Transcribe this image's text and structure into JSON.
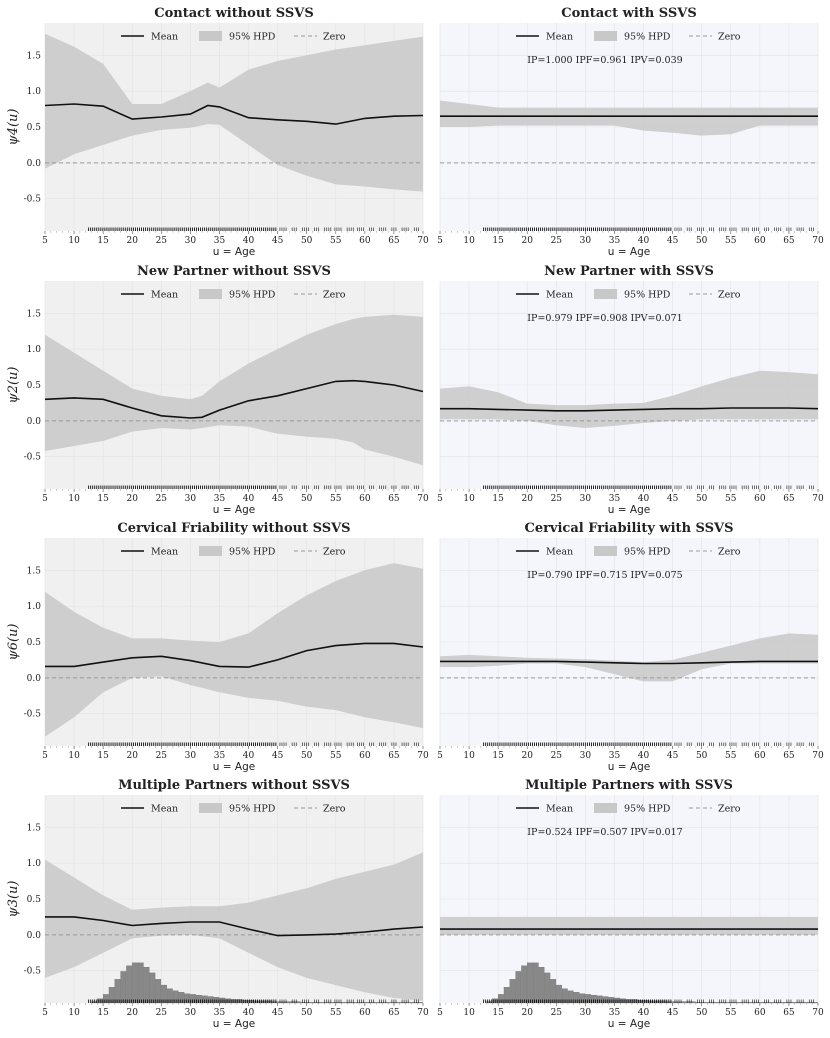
{
  "legend": {
    "mean": "Mean",
    "hpd": "95% HPD",
    "zero": "Zero"
  },
  "colors": {
    "left_bg": "#f0f0f0",
    "right_bg": "#f5f6fc",
    "band": "#c8c8c8",
    "mean": "#111111",
    "zero": "#999999",
    "hist": "#888888"
  },
  "chart_data": [
    {
      "type": "line",
      "title": "Contact without SSVS",
      "ylabel": "ψ4(u)",
      "xlabel": "u = Age",
      "xlim": [
        5,
        70
      ],
      "ylim": [
        -0.95,
        1.95
      ],
      "x": [
        5,
        10,
        15,
        20,
        25,
        30,
        33,
        35,
        40,
        45,
        50,
        55,
        60,
        65,
        70
      ],
      "mean": [
        0.8,
        0.82,
        0.79,
        0.61,
        0.64,
        0.68,
        0.8,
        0.78,
        0.63,
        0.6,
        0.58,
        0.54,
        0.62,
        0.65,
        0.66
      ],
      "hpd_upper": [
        1.8,
        1.62,
        1.38,
        0.82,
        0.82,
        1.0,
        1.12,
        1.05,
        1.3,
        1.42,
        1.5,
        1.58,
        1.64,
        1.7,
        1.76
      ],
      "hpd_lower": [
        -0.08,
        0.12,
        0.25,
        0.38,
        0.46,
        0.49,
        0.54,
        0.53,
        0.25,
        -0.03,
        -0.18,
        -0.3,
        -0.33,
        -0.37,
        -0.4
      ],
      "annotation": ""
    },
    {
      "type": "line",
      "title": "Contact with SSVS",
      "ylabel": "",
      "xlabel": "u = Age",
      "xlim": [
        5,
        70
      ],
      "ylim": [
        -0.95,
        1.95
      ],
      "x": [
        5,
        10,
        15,
        20,
        25,
        30,
        35,
        40,
        45,
        50,
        55,
        60,
        65,
        70
      ],
      "mean": [
        0.65,
        0.65,
        0.65,
        0.65,
        0.65,
        0.65,
        0.65,
        0.65,
        0.65,
        0.65,
        0.65,
        0.65,
        0.65,
        0.65
      ],
      "hpd_upper": [
        0.87,
        0.82,
        0.77,
        0.77,
        0.77,
        0.77,
        0.77,
        0.77,
        0.77,
        0.77,
        0.77,
        0.77,
        0.77,
        0.77
      ],
      "hpd_lower": [
        0.5,
        0.5,
        0.52,
        0.52,
        0.52,
        0.52,
        0.52,
        0.45,
        0.42,
        0.38,
        0.4,
        0.52,
        0.52,
        0.52
      ],
      "annotation": "IP=1.000    IPF=0.961    IPV=0.039"
    },
    {
      "type": "line",
      "title": "New Partner without SSVS",
      "ylabel": "ψ2(u)",
      "xlabel": "u = Age",
      "xlim": [
        5,
        70
      ],
      "ylim": [
        -0.95,
        1.95
      ],
      "x": [
        5,
        10,
        15,
        20,
        25,
        30,
        32,
        35,
        40,
        45,
        50,
        55,
        58,
        60,
        65,
        70
      ],
      "mean": [
        0.3,
        0.32,
        0.3,
        0.18,
        0.07,
        0.04,
        0.05,
        0.15,
        0.28,
        0.35,
        0.45,
        0.55,
        0.56,
        0.55,
        0.5,
        0.41
      ],
      "hpd_upper": [
        1.2,
        0.95,
        0.7,
        0.45,
        0.35,
        0.3,
        0.35,
        0.55,
        0.8,
        1.0,
        1.2,
        1.35,
        1.42,
        1.45,
        1.48,
        1.45
      ],
      "hpd_lower": [
        -0.42,
        -0.35,
        -0.28,
        -0.15,
        -0.1,
        -0.12,
        -0.1,
        -0.06,
        -0.08,
        -0.18,
        -0.22,
        -0.25,
        -0.3,
        -0.4,
        -0.5,
        -0.62
      ],
      "annotation": ""
    },
    {
      "type": "line",
      "title": "New Partner with SSVS",
      "ylabel": "",
      "xlabel": "u = Age",
      "xlim": [
        5,
        70
      ],
      "ylim": [
        -0.95,
        1.95
      ],
      "x": [
        5,
        10,
        15,
        20,
        25,
        30,
        35,
        40,
        45,
        50,
        55,
        60,
        65,
        70
      ],
      "mean": [
        0.17,
        0.17,
        0.16,
        0.15,
        0.14,
        0.14,
        0.15,
        0.16,
        0.17,
        0.17,
        0.18,
        0.18,
        0.18,
        0.17
      ],
      "hpd_upper": [
        0.45,
        0.48,
        0.4,
        0.24,
        0.22,
        0.22,
        0.24,
        0.25,
        0.35,
        0.48,
        0.6,
        0.7,
        0.68,
        0.65
      ],
      "hpd_lower": [
        0.02,
        0.02,
        0.02,
        0.0,
        -0.06,
        -0.1,
        -0.07,
        -0.03,
        0.0,
        0.02,
        0.02,
        0.02,
        0.02,
        0.02
      ],
      "annotation": "IP=0.979    IPF=0.908    IPV=0.071"
    },
    {
      "type": "line",
      "title": "Cervical Friability without SSVS",
      "ylabel": "ψ6(u)",
      "xlabel": "u = Age",
      "xlim": [
        5,
        70
      ],
      "ylim": [
        -0.95,
        1.95
      ],
      "x": [
        5,
        10,
        15,
        20,
        25,
        30,
        35,
        40,
        45,
        50,
        55,
        60,
        65,
        70
      ],
      "mean": [
        0.16,
        0.16,
        0.22,
        0.28,
        0.3,
        0.24,
        0.16,
        0.15,
        0.25,
        0.38,
        0.45,
        0.48,
        0.48,
        0.43
      ],
      "hpd_upper": [
        1.2,
        0.92,
        0.7,
        0.55,
        0.55,
        0.52,
        0.5,
        0.62,
        0.9,
        1.15,
        1.35,
        1.5,
        1.6,
        1.52
      ],
      "hpd_lower": [
        -0.82,
        -0.55,
        -0.2,
        0.0,
        0.02,
        -0.1,
        -0.2,
        -0.28,
        -0.32,
        -0.4,
        -0.45,
        -0.55,
        -0.62,
        -0.7
      ],
      "annotation": ""
    },
    {
      "type": "line",
      "title": "Cervical Friability with SSVS",
      "ylabel": "",
      "xlabel": "u = Age",
      "xlim": [
        5,
        70
      ],
      "ylim": [
        -0.95,
        1.95
      ],
      "x": [
        5,
        10,
        15,
        20,
        25,
        30,
        35,
        40,
        45,
        50,
        55,
        60,
        65,
        70
      ],
      "mean": [
        0.23,
        0.23,
        0.23,
        0.23,
        0.23,
        0.22,
        0.21,
        0.2,
        0.2,
        0.21,
        0.22,
        0.23,
        0.23,
        0.23
      ],
      "hpd_upper": [
        0.3,
        0.32,
        0.3,
        0.28,
        0.27,
        0.26,
        0.24,
        0.22,
        0.25,
        0.35,
        0.45,
        0.55,
        0.62,
        0.6
      ],
      "hpd_lower": [
        0.15,
        0.15,
        0.17,
        0.2,
        0.2,
        0.15,
        0.05,
        -0.05,
        -0.05,
        0.12,
        0.2,
        0.2,
        0.2,
        0.2
      ],
      "annotation": "IP=0.790    IPF=0.715    IPV=0.075"
    },
    {
      "type": "line",
      "title": "Multiple Partners without SSVS",
      "ylabel": "ψ3(u)",
      "xlabel": "u = Age",
      "xlim": [
        5,
        70
      ],
      "ylim": [
        -0.95,
        1.95
      ],
      "x": [
        5,
        10,
        15,
        20,
        25,
        30,
        35,
        40,
        45,
        50,
        55,
        60,
        65,
        70
      ],
      "mean": [
        0.25,
        0.25,
        0.2,
        0.13,
        0.16,
        0.18,
        0.18,
        0.08,
        -0.01,
        0.0,
        0.01,
        0.04,
        0.08,
        0.11
      ],
      "hpd_upper": [
        1.05,
        0.8,
        0.55,
        0.35,
        0.38,
        0.4,
        0.4,
        0.45,
        0.55,
        0.65,
        0.78,
        0.88,
        0.98,
        1.15
      ],
      "hpd_lower": [
        -0.6,
        -0.45,
        -0.25,
        -0.05,
        -0.01,
        0.0,
        -0.05,
        -0.25,
        -0.45,
        -0.6,
        -0.7,
        -0.8,
        -0.88,
        -0.92
      ],
      "annotation": ""
    },
    {
      "type": "line",
      "title": "Multiple Partners with SSVS",
      "ylabel": "",
      "xlabel": "u = Age",
      "xlim": [
        5,
        70
      ],
      "ylim": [
        -0.95,
        1.95
      ],
      "x": [
        5,
        10,
        15,
        20,
        25,
        30,
        35,
        40,
        45,
        50,
        55,
        60,
        65,
        70
      ],
      "mean": [
        0.08,
        0.08,
        0.08,
        0.08,
        0.08,
        0.08,
        0.08,
        0.08,
        0.08,
        0.08,
        0.08,
        0.08,
        0.08,
        0.08
      ],
      "hpd_upper": [
        0.25,
        0.25,
        0.25,
        0.25,
        0.25,
        0.25,
        0.25,
        0.25,
        0.25,
        0.25,
        0.25,
        0.25,
        0.25,
        0.25
      ],
      "hpd_lower": [
        0.0,
        0.0,
        0.0,
        0.0,
        0.0,
        0.0,
        0.0,
        0.0,
        0.0,
        0.0,
        0.0,
        0.0,
        0.0,
        0.0
      ],
      "annotation": "IP=0.524    IPF=0.507    IPV=0.017"
    }
  ],
  "axes": {
    "x_ticks": [
      5,
      10,
      15,
      20,
      25,
      30,
      35,
      40,
      45,
      50,
      55,
      60,
      65,
      70
    ],
    "y_ticks": [
      -0.5,
      0.0,
      0.5,
      1.0,
      1.5
    ],
    "y_tick_labels": [
      "-0.5",
      "0.0",
      "0.5",
      "1.0",
      "1.5"
    ]
  },
  "histogram": {
    "bin_start": 13,
    "bin_width": 1,
    "heights": [
      0.02,
      0.06,
      0.12,
      0.22,
      0.33,
      0.44,
      0.52,
      0.56,
      0.56,
      0.5,
      0.42,
      0.33,
      0.25,
      0.2,
      0.17,
      0.15,
      0.13,
      0.12,
      0.11,
      0.1,
      0.09,
      0.08,
      0.07,
      0.06,
      0.05,
      0.05,
      0.04,
      0.04,
      0.03,
      0.03,
      0.03,
      0.02,
      0.02,
      0.02,
      0.02,
      0.02,
      0.01,
      0.01,
      0.01,
      0.01,
      0.01,
      0.01,
      0.01,
      0.01,
      0.01,
      0.01,
      0.01,
      0.01,
      0.01,
      0.01,
      0.01,
      0.01,
      0.01,
      0.01,
      0.01,
      0.01,
      0.01
    ]
  }
}
